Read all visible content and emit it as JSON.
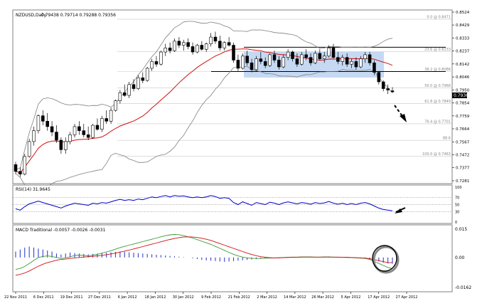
{
  "header": {
    "symbol": "NZDUSD,Daily",
    "ohlc": "0.79438 0.79714 0.79288 0.79356"
  },
  "price_panel": {
    "y_ticks": [
      "0.8524",
      "0.8429",
      "0.8333",
      "0.8237",
      "0.8142",
      "0.8046",
      "0.7950",
      "0.7854",
      "0.7759",
      "0.7664",
      "0.7567",
      "0.7472",
      "0.7377",
      "0.7281"
    ],
    "current_price": "0.7936",
    "fib_labels": [
      {
        "text": "0.0 @ 0.8471",
        "price": 0.8471
      },
      {
        "text": "23.6 @ 0.8233",
        "price": 0.8233
      },
      {
        "text": "38.2 @ 0.8086",
        "price": 0.8086
      },
      {
        "text": "50.0 @ 0.7966",
        "price": 0.7966
      },
      {
        "text": "61.8 @ 0.7849",
        "price": 0.7849
      },
      {
        "text": "76.4 @ 0.7701",
        "price": 0.7701
      },
      {
        "text": "88.6",
        "price": 0.7579
      },
      {
        "text": "100.0 @ 0.7463",
        "price": 0.7463
      }
    ],
    "horizontal_levels": [
      0.8265,
      0.8086
    ]
  },
  "rsi_panel": {
    "title": "RSI(14) 31.9645",
    "levels": [
      "100",
      "70",
      "50",
      "30",
      "0"
    ]
  },
  "macd_panel": {
    "title": "MACD Traditional -0.0057 -0.0026 -0.0031",
    "y_ticks": [
      "0.015",
      "0.00",
      "-0.0162"
    ]
  },
  "x_axis": {
    "labels": [
      "22 Nov 2011",
      "6 Dec 2011",
      "19 Dec 2011",
      "27 Dec 2011",
      "6 Jan 2012",
      "18 Jan 2012",
      "30 Jan 2012",
      "9 Feb 2012",
      "21 Feb 2012",
      "2 Mar 2012",
      "14 Mar 2012",
      "26 Mar 2012",
      "5 Apr 2012",
      "17 Apr 2012",
      "27 Apr 2012"
    ]
  },
  "colors": {
    "bullish": "#ffffff",
    "bearish": "#000000",
    "ma": "#d01010",
    "bands": "#808080",
    "rsi": "#0000cc",
    "macd_main": "#3a9a3a",
    "macd_signal": "#d01010",
    "macd_hist": "#3344cc",
    "box": "#b8d0f0"
  },
  "chart_data": [
    {
      "type": "candlestick",
      "title": "NZDUSD,Daily",
      "ylim": [
        0.7281,
        0.8524
      ],
      "bars": [
        {
          "o": 0.74,
          "h": 0.742,
          "l": 0.733,
          "c": 0.735
        },
        {
          "o": 0.735,
          "h": 0.738,
          "l": 0.731,
          "c": 0.733
        },
        {
          "o": 0.733,
          "h": 0.748,
          "l": 0.732,
          "c": 0.746
        },
        {
          "o": 0.746,
          "h": 0.759,
          "l": 0.745,
          "c": 0.757
        },
        {
          "o": 0.757,
          "h": 0.768,
          "l": 0.754,
          "c": 0.765
        },
        {
          "o": 0.765,
          "h": 0.777,
          "l": 0.763,
          "c": 0.776
        },
        {
          "o": 0.776,
          "h": 0.78,
          "l": 0.769,
          "c": 0.772
        },
        {
          "o": 0.772,
          "h": 0.778,
          "l": 0.765,
          "c": 0.768
        },
        {
          "o": 0.768,
          "h": 0.772,
          "l": 0.761,
          "c": 0.764
        },
        {
          "o": 0.764,
          "h": 0.769,
          "l": 0.756,
          "c": 0.758
        },
        {
          "o": 0.758,
          "h": 0.76,
          "l": 0.748,
          "c": 0.751
        },
        {
          "o": 0.751,
          "h": 0.76,
          "l": 0.748,
          "c": 0.757
        },
        {
          "o": 0.757,
          "h": 0.764,
          "l": 0.755,
          "c": 0.762
        },
        {
          "o": 0.762,
          "h": 0.77,
          "l": 0.76,
          "c": 0.768
        },
        {
          "o": 0.768,
          "h": 0.772,
          "l": 0.762,
          "c": 0.765
        },
        {
          "o": 0.765,
          "h": 0.77,
          "l": 0.76,
          "c": 0.762
        },
        {
          "o": 0.762,
          "h": 0.768,
          "l": 0.758,
          "c": 0.76
        },
        {
          "o": 0.76,
          "h": 0.77,
          "l": 0.759,
          "c": 0.769
        },
        {
          "o": 0.769,
          "h": 0.774,
          "l": 0.765,
          "c": 0.766
        },
        {
          "o": 0.766,
          "h": 0.776,
          "l": 0.764,
          "c": 0.774
        },
        {
          "o": 0.774,
          "h": 0.78,
          "l": 0.77,
          "c": 0.772
        },
        {
          "o": 0.772,
          "h": 0.782,
          "l": 0.77,
          "c": 0.78
        },
        {
          "o": 0.78,
          "h": 0.788,
          "l": 0.779,
          "c": 0.787
        },
        {
          "o": 0.787,
          "h": 0.795,
          "l": 0.785,
          "c": 0.793
        },
        {
          "o": 0.793,
          "h": 0.799,
          "l": 0.79,
          "c": 0.791
        },
        {
          "o": 0.791,
          "h": 0.801,
          "l": 0.789,
          "c": 0.799
        },
        {
          "o": 0.799,
          "h": 0.803,
          "l": 0.794,
          "c": 0.796
        },
        {
          "o": 0.796,
          "h": 0.806,
          "l": 0.795,
          "c": 0.804
        },
        {
          "o": 0.804,
          "h": 0.808,
          "l": 0.8,
          "c": 0.802
        },
        {
          "o": 0.802,
          "h": 0.812,
          "l": 0.801,
          "c": 0.811
        },
        {
          "o": 0.811,
          "h": 0.818,
          "l": 0.809,
          "c": 0.816
        },
        {
          "o": 0.816,
          "h": 0.82,
          "l": 0.812,
          "c": 0.814
        },
        {
          "o": 0.814,
          "h": 0.824,
          "l": 0.813,
          "c": 0.823
        },
        {
          "o": 0.823,
          "h": 0.829,
          "l": 0.82,
          "c": 0.826
        },
        {
          "o": 0.826,
          "h": 0.83,
          "l": 0.822,
          "c": 0.824
        },
        {
          "o": 0.824,
          "h": 0.833,
          "l": 0.823,
          "c": 0.831
        },
        {
          "o": 0.831,
          "h": 0.834,
          "l": 0.826,
          "c": 0.828
        },
        {
          "o": 0.828,
          "h": 0.832,
          "l": 0.824,
          "c": 0.83
        },
        {
          "o": 0.83,
          "h": 0.833,
          "l": 0.825,
          "c": 0.827
        },
        {
          "o": 0.827,
          "h": 0.83,
          "l": 0.821,
          "c": 0.823
        },
        {
          "o": 0.823,
          "h": 0.829,
          "l": 0.822,
          "c": 0.828
        },
        {
          "o": 0.828,
          "h": 0.831,
          "l": 0.824,
          "c": 0.825
        },
        {
          "o": 0.825,
          "h": 0.83,
          "l": 0.823,
          "c": 0.829
        },
        {
          "o": 0.829,
          "h": 0.837,
          "l": 0.827,
          "c": 0.834
        },
        {
          "o": 0.834,
          "h": 0.838,
          "l": 0.829,
          "c": 0.831
        },
        {
          "o": 0.831,
          "h": 0.835,
          "l": 0.824,
          "c": 0.826
        },
        {
          "o": 0.826,
          "h": 0.831,
          "l": 0.824,
          "c": 0.83
        },
        {
          "o": 0.83,
          "h": 0.834,
          "l": 0.827,
          "c": 0.828
        },
        {
          "o": 0.828,
          "h": 0.83,
          "l": 0.815,
          "c": 0.817
        },
        {
          "o": 0.817,
          "h": 0.821,
          "l": 0.809,
          "c": 0.811
        },
        {
          "o": 0.811,
          "h": 0.822,
          "l": 0.81,
          "c": 0.82
        },
        {
          "o": 0.82,
          "h": 0.824,
          "l": 0.813,
          "c": 0.815
        },
        {
          "o": 0.815,
          "h": 0.818,
          "l": 0.808,
          "c": 0.81
        },
        {
          "o": 0.81,
          "h": 0.82,
          "l": 0.809,
          "c": 0.818
        },
        {
          "o": 0.818,
          "h": 0.823,
          "l": 0.814,
          "c": 0.816
        },
        {
          "o": 0.816,
          "h": 0.819,
          "l": 0.811,
          "c": 0.813
        },
        {
          "o": 0.813,
          "h": 0.822,
          "l": 0.812,
          "c": 0.821
        },
        {
          "o": 0.821,
          "h": 0.824,
          "l": 0.815,
          "c": 0.817
        },
        {
          "o": 0.817,
          "h": 0.82,
          "l": 0.81,
          "c": 0.812
        },
        {
          "o": 0.812,
          "h": 0.821,
          "l": 0.811,
          "c": 0.819
        },
        {
          "o": 0.819,
          "h": 0.825,
          "l": 0.817,
          "c": 0.823
        },
        {
          "o": 0.823,
          "h": 0.824,
          "l": 0.816,
          "c": 0.818
        },
        {
          "o": 0.818,
          "h": 0.822,
          "l": 0.812,
          "c": 0.814
        },
        {
          "o": 0.814,
          "h": 0.823,
          "l": 0.813,
          "c": 0.821
        },
        {
          "o": 0.821,
          "h": 0.825,
          "l": 0.817,
          "c": 0.819
        },
        {
          "o": 0.819,
          "h": 0.822,
          "l": 0.813,
          "c": 0.815
        },
        {
          "o": 0.815,
          "h": 0.824,
          "l": 0.814,
          "c": 0.822
        },
        {
          "o": 0.822,
          "h": 0.825,
          "l": 0.817,
          "c": 0.818
        },
        {
          "o": 0.818,
          "h": 0.823,
          "l": 0.815,
          "c": 0.82
        },
        {
          "o": 0.82,
          "h": 0.828,
          "l": 0.819,
          "c": 0.826
        },
        {
          "o": 0.826,
          "h": 0.829,
          "l": 0.818,
          "c": 0.819
        },
        {
          "o": 0.819,
          "h": 0.823,
          "l": 0.814,
          "c": 0.816
        },
        {
          "o": 0.816,
          "h": 0.821,
          "l": 0.813,
          "c": 0.819
        },
        {
          "o": 0.819,
          "h": 0.822,
          "l": 0.812,
          "c": 0.814
        },
        {
          "o": 0.814,
          "h": 0.818,
          "l": 0.811,
          "c": 0.816
        },
        {
          "o": 0.816,
          "h": 0.819,
          "l": 0.81,
          "c": 0.812
        },
        {
          "o": 0.812,
          "h": 0.82,
          "l": 0.811,
          "c": 0.818
        },
        {
          "o": 0.818,
          "h": 0.823,
          "l": 0.815,
          "c": 0.821
        },
        {
          "o": 0.821,
          "h": 0.823,
          "l": 0.813,
          "c": 0.815
        },
        {
          "o": 0.815,
          "h": 0.817,
          "l": 0.806,
          "c": 0.808
        },
        {
          "o": 0.808,
          "h": 0.809,
          "l": 0.799,
          "c": 0.801
        },
        {
          "o": 0.801,
          "h": 0.802,
          "l": 0.794,
          "c": 0.796
        },
        {
          "o": 0.796,
          "h": 0.799,
          "l": 0.792,
          "c": 0.795
        },
        {
          "o": 0.7944,
          "h": 0.7971,
          "l": 0.7929,
          "c": 0.7936
        }
      ]
    },
    {
      "type": "line",
      "title": "RSI(14) 31.9645",
      "ylim": [
        0,
        100
      ],
      "values": [
        38,
        34,
        44,
        52,
        56,
        60,
        56,
        52,
        48,
        44,
        40,
        46,
        50,
        54,
        52,
        50,
        48,
        54,
        52,
        56,
        54,
        58,
        62,
        65,
        62,
        64,
        62,
        66,
        64,
        68,
        72,
        70,
        73,
        76,
        72,
        76,
        74,
        75,
        72,
        70,
        72,
        70,
        72,
        76,
        73,
        68,
        70,
        68,
        56,
        50,
        58,
        53,
        48,
        56,
        53,
        50,
        57,
        54,
        50,
        55,
        58,
        55,
        52,
        56,
        54,
        51,
        56,
        53,
        55,
        59,
        54,
        51,
        54,
        50,
        53,
        50,
        54,
        56,
        52,
        46,
        40,
        36,
        34,
        32
      ]
    },
    {
      "type": "bar+line",
      "title": "MACD Traditional -0.0057 -0.0026 -0.0031",
      "ylim": [
        -0.0162,
        0.015
      ],
      "series": [
        {
          "name": "hist",
          "values": [
            0.003,
            0.004,
            0.005,
            0.0055,
            0.005,
            0.0045,
            0.004,
            0.0035,
            0.003,
            0.002,
            0.0015,
            0.002,
            0.0025,
            0.0022,
            0.002,
            0.0018,
            0.0016,
            0.0018,
            0.002,
            0.0022,
            0.0024,
            0.0026,
            0.0028,
            0.003,
            0.0028,
            0.0026,
            0.0024,
            0.0022,
            0.002,
            0.0018,
            0.0016,
            0.0014,
            0.0012,
            0.001,
            0.0008,
            0.0006,
            0.0004,
            0.0002,
            0.0,
            -0.0004,
            -0.0008,
            -0.0012,
            -0.0015,
            -0.0016,
            -0.0018,
            -0.002,
            -0.0022,
            -0.002,
            -0.0018,
            -0.0016,
            -0.0014,
            -0.0012,
            -0.001,
            -0.0008,
            -0.0006,
            -0.0004,
            -0.0003,
            -0.0002,
            -0.0002,
            -0.0001,
            0.0,
            0.0,
            0.0001,
            0.0001,
            0.0001,
            0.0002,
            0.0002,
            0.0001,
            0.0001,
            0.0002,
            0.0001,
            0.0,
            0.0,
            -0.0001,
            -0.0001,
            -0.0002,
            -0.0002,
            -0.0003,
            -0.001,
            -0.0015,
            -0.002,
            -0.0026,
            -0.003,
            -0.0031
          ]
        },
        {
          "name": "main",
          "values": [
            -0.006,
            -0.0055,
            -0.0045,
            -0.003,
            -0.0015,
            0.0,
            0.0005,
            0.0008,
            0.0005,
            0.0,
            -0.0005,
            -0.0002,
            0.0003,
            0.001,
            0.0012,
            0.001,
            0.0008,
            0.0012,
            0.0016,
            0.0022,
            0.0028,
            0.0034,
            0.0042,
            0.005,
            0.0056,
            0.0062,
            0.0068,
            0.0074,
            0.008,
            0.0086,
            0.0092,
            0.0098,
            0.0104,
            0.011,
            0.0114,
            0.0116,
            0.0115,
            0.011,
            0.0104,
            0.0098,
            0.009,
            0.0082,
            0.0074,
            0.0066,
            0.0056,
            0.0046,
            0.0036,
            0.0026,
            0.0016,
            0.0008,
            0.0002,
            -0.0002,
            -0.0004,
            -0.0005,
            -0.0005,
            -0.0004,
            -0.0003,
            -0.0002,
            -0.0001,
            0.0,
            0.0001,
            0.0002,
            0.0002,
            0.0003,
            0.0003,
            0.0003,
            0.0002,
            0.0002,
            0.0003,
            0.0003,
            0.0002,
            0.0001,
            0.0001,
            0.0,
            -0.0001,
            -0.0002,
            -0.0003,
            -0.0005,
            -0.001,
            -0.002,
            -0.003,
            -0.004,
            -0.005,
            -0.0057
          ]
        },
        {
          "name": "signal",
          "values": [
            -0.009,
            -0.0085,
            -0.0078,
            -0.0068,
            -0.0056,
            -0.0044,
            -0.0034,
            -0.0026,
            -0.002,
            -0.0014,
            -0.001,
            -0.0008,
            -0.0005,
            -0.0002,
            0.0,
            0.0002,
            0.0004,
            0.0006,
            0.0008,
            0.0011,
            0.0014,
            0.0018,
            0.0022,
            0.0027,
            0.0032,
            0.0037,
            0.0043,
            0.0049,
            0.0055,
            0.0061,
            0.0067,
            0.0073,
            0.0079,
            0.0085,
            0.0091,
            0.0096,
            0.01,
            0.0103,
            0.0104,
            0.0103,
            0.0101,
            0.0097,
            0.0092,
            0.0086,
            0.0078,
            0.007,
            0.0062,
            0.0054,
            0.0046,
            0.0038,
            0.003,
            0.0022,
            0.0015,
            0.0009,
            0.0004,
            0.0001,
            -0.0001,
            -0.0002,
            -0.0002,
            -0.0001,
            0.0,
            0.0001,
            0.0001,
            0.0002,
            0.0002,
            0.0002,
            0.0002,
            0.0002,
            0.0002,
            0.0002,
            0.0002,
            0.0002,
            0.0001,
            0.0001,
            0.0,
            -0.0001,
            -0.0002,
            -0.0003,
            -0.0006,
            -0.0011,
            -0.0016,
            -0.0021,
            -0.0026,
            -0.0026
          ]
        }
      ]
    }
  ]
}
